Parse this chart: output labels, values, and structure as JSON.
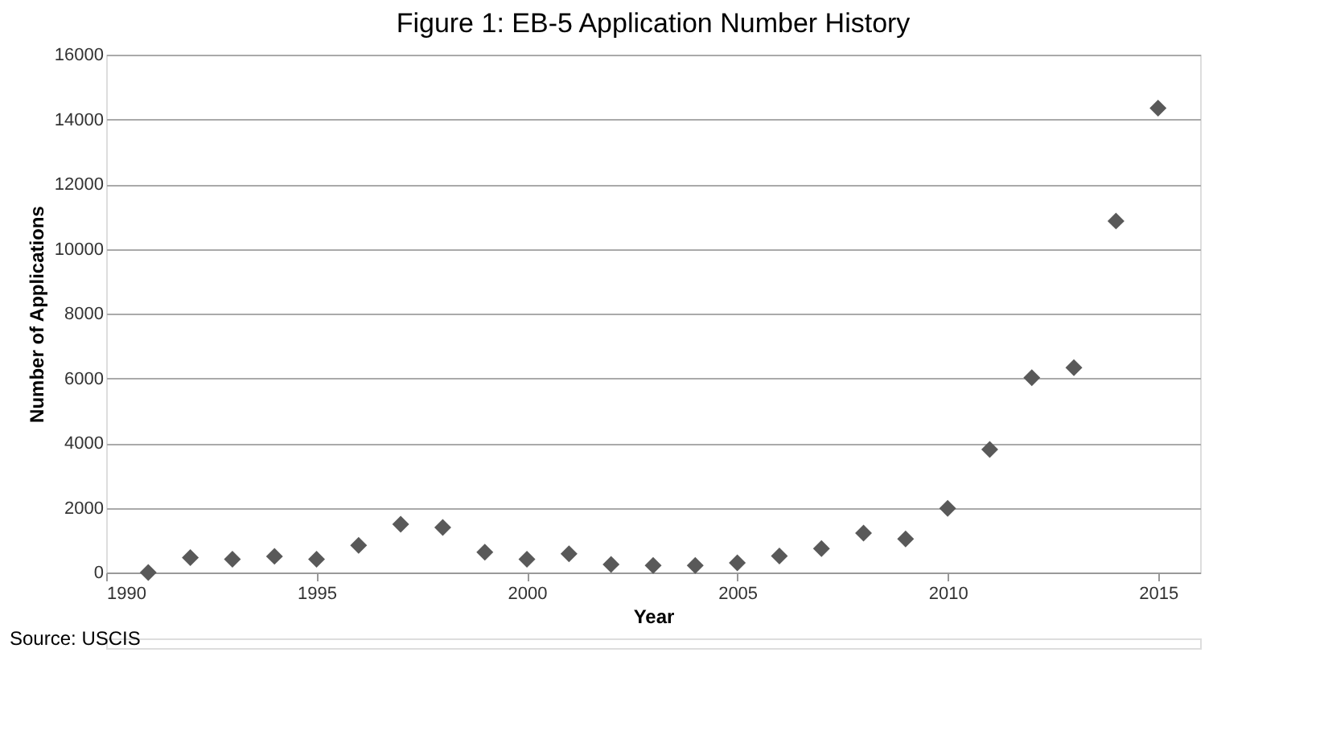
{
  "chart_data": {
    "type": "scatter",
    "title": "Figure 1: EB-5 Application Number History",
    "xlabel": "Year",
    "ylabel": "Number of Applications",
    "x": [
      1991,
      1992,
      1993,
      1994,
      1995,
      1996,
      1997,
      1998,
      1999,
      2000,
      2001,
      2002,
      2003,
      2004,
      2005,
      2006,
      2007,
      2008,
      2009,
      2010,
      2011,
      2012,
      2013,
      2014,
      2015
    ],
    "series": [
      {
        "color": "#595959",
        "values": [
          0,
          460,
          410,
          500,
          410,
          840,
          1490,
          1390,
          630,
          410,
          580,
          250,
          220,
          220,
          300,
          510,
          740,
          1220,
          1040,
          1980,
          3800,
          6020,
          6330,
          10860,
          14350
        ]
      }
    ],
    "xlim": [
      1990,
      2016
    ],
    "xticks": [
      1990,
      1995,
      2000,
      2005,
      2010,
      2015
    ],
    "ylim": [
      0,
      16000
    ],
    "yticks": [
      0,
      2000,
      4000,
      6000,
      8000,
      10000,
      12000,
      14000,
      16000
    ],
    "grid": "y",
    "marker": "diamond",
    "legend": false,
    "annotations": [
      "Source: USCIS"
    ]
  }
}
